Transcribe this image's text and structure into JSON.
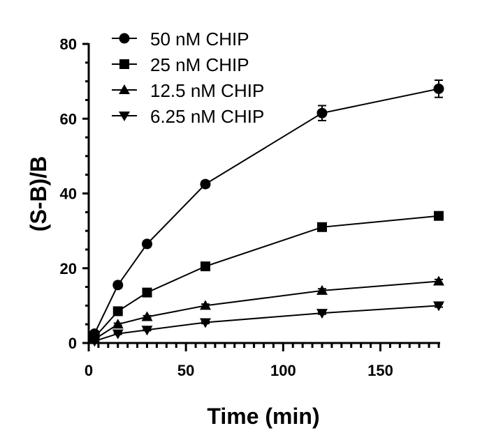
{
  "chart_data": {
    "type": "line",
    "xlabel": "Time (min)",
    "ylabel": "(S-B)/B",
    "xlim": [
      0,
      180
    ],
    "ylim": [
      0,
      80
    ],
    "x_ticks": [
      "0",
      "50",
      "100",
      "150"
    ],
    "y_ticks": [
      "0",
      "20",
      "40",
      "60",
      "80"
    ],
    "grid": false,
    "legend_position": "top-left",
    "x": [
      3,
      15,
      30,
      60,
      120,
      180
    ],
    "series": [
      {
        "name": "50 nM CHIP",
        "marker": "circle",
        "values": [
          2.5,
          15.5,
          26.5,
          42.5,
          61.5,
          68
        ],
        "error": [
          0.4,
          0.8,
          0.8,
          0.8,
          2.0,
          2.3
        ]
      },
      {
        "name": "25 nM CHIP",
        "marker": "square",
        "values": [
          1.5,
          8.5,
          13.5,
          20.5,
          31,
          34
        ],
        "error": [
          0.3,
          0.5,
          0.5,
          0.6,
          0.9,
          0.8
        ]
      },
      {
        "name": "12.5 nM CHIP",
        "marker": "triangle-up",
        "values": [
          1.0,
          5.0,
          7.0,
          10.0,
          14.0,
          16.5
        ],
        "error": [
          0.2,
          0.3,
          0.3,
          0.4,
          0.5,
          0.5
        ]
      },
      {
        "name": "6.25 nM CHIP",
        "marker": "triangle-down",
        "values": [
          0.5,
          2.5,
          3.5,
          5.5,
          8.0,
          10.0
        ],
        "error": [
          0.2,
          0.2,
          0.2,
          0.3,
          0.3,
          0.4
        ]
      }
    ]
  }
}
